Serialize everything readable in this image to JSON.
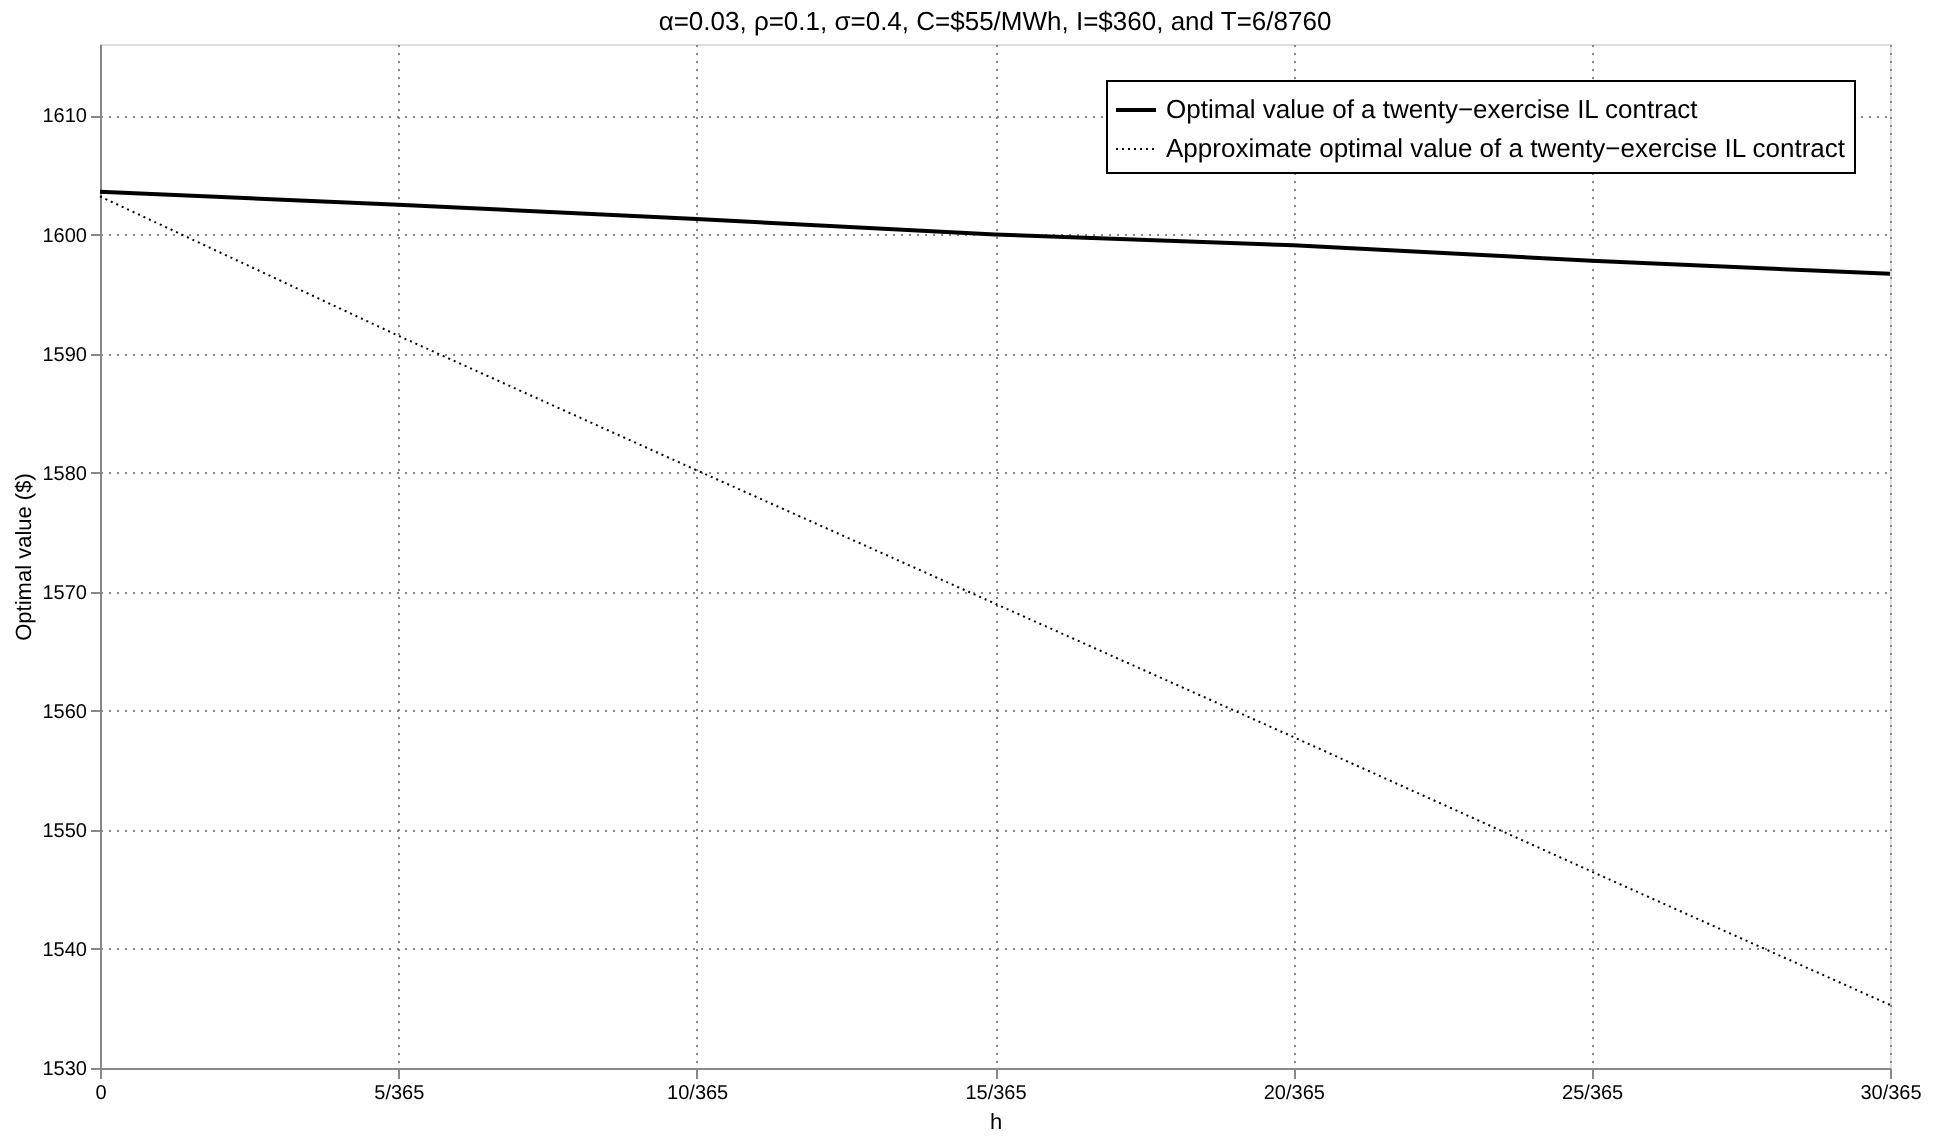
{
  "chart_data": {
    "type": "line",
    "title": "α=0.03, ρ=0.1, σ=0.4, C=$55/MWh, I=$360, and T=6/8760",
    "xlabel": "h",
    "ylabel": "Optimal value ($)",
    "categories": [
      "0",
      "5/365",
      "10/365",
      "15/365",
      "20/365",
      "25/365",
      "30/365"
    ],
    "series": [
      {
        "name": "Optimal value of a twenty−exercise IL contract",
        "color": "#000000",
        "line_style": "solid",
        "values": [
          1603.6,
          1602.5,
          1601.3,
          1600.0,
          1599.1,
          1597.8,
          1596.7
        ]
      },
      {
        "name": "Approximate optimal value of a twenty−exercise IL contract",
        "color": "#000000",
        "line_style": "dotted",
        "values": [
          1603.2,
          1591.5,
          1580.2,
          1569.0,
          1557.8,
          1546.5,
          1535.3
        ]
      }
    ],
    "ylim": [
      1530,
      1616
    ],
    "yticks": [
      1530,
      1540,
      1550,
      1560,
      1570,
      1580,
      1590,
      1600,
      1610
    ],
    "grid": true,
    "legend": "top right",
    "marker": "none"
  }
}
